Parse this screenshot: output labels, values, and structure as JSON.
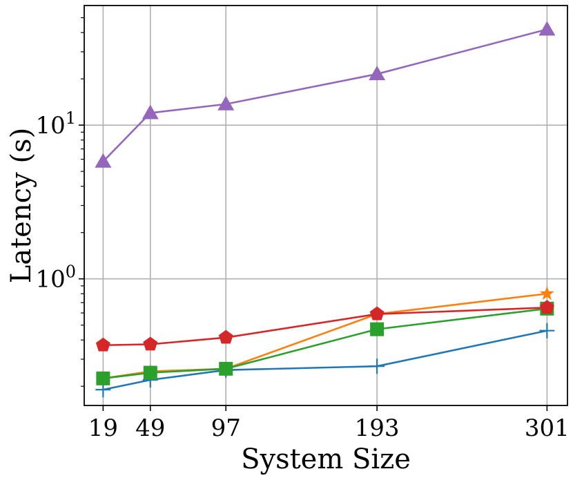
{
  "chart_data": {
    "type": "line",
    "title": "",
    "xlabel": "System Size",
    "ylabel": "Latency (s)",
    "yscale": "log",
    "grid": true,
    "legend": "none",
    "x": [
      19,
      49,
      97,
      193,
      301
    ],
    "x_tick_labels": [
      "19",
      "49",
      "97",
      "193",
      "301"
    ],
    "y_ticks": [
      {
        "value": 1,
        "base": "10",
        "exp": "0"
      },
      {
        "value": 10,
        "base": "10",
        "exp": "1"
      }
    ],
    "ylim": [
      0.15,
      60
    ],
    "xlim": [
      7,
      314
    ],
    "series": [
      {
        "name": "series-blue",
        "color": "#1f77b4",
        "marker": "plus",
        "values": [
          0.19,
          0.22,
          0.255,
          0.27,
          0.46
        ]
      },
      {
        "name": "series-orange",
        "color": "#ff7f0e",
        "marker": "star",
        "values": [
          0.225,
          0.25,
          0.26,
          0.59,
          0.8
        ]
      },
      {
        "name": "series-green",
        "color": "#2ca02c",
        "marker": "square",
        "values": [
          0.225,
          0.245,
          0.26,
          0.47,
          0.64
        ]
      },
      {
        "name": "series-red",
        "color": "#d62728",
        "marker": "pentagon",
        "values": [
          0.37,
          0.375,
          0.415,
          0.59,
          0.65
        ]
      },
      {
        "name": "series-purple",
        "color": "#9467bd",
        "marker": "triangle",
        "values": [
          5.8,
          12.0,
          13.7,
          21.5,
          42.0
        ]
      }
    ]
  }
}
